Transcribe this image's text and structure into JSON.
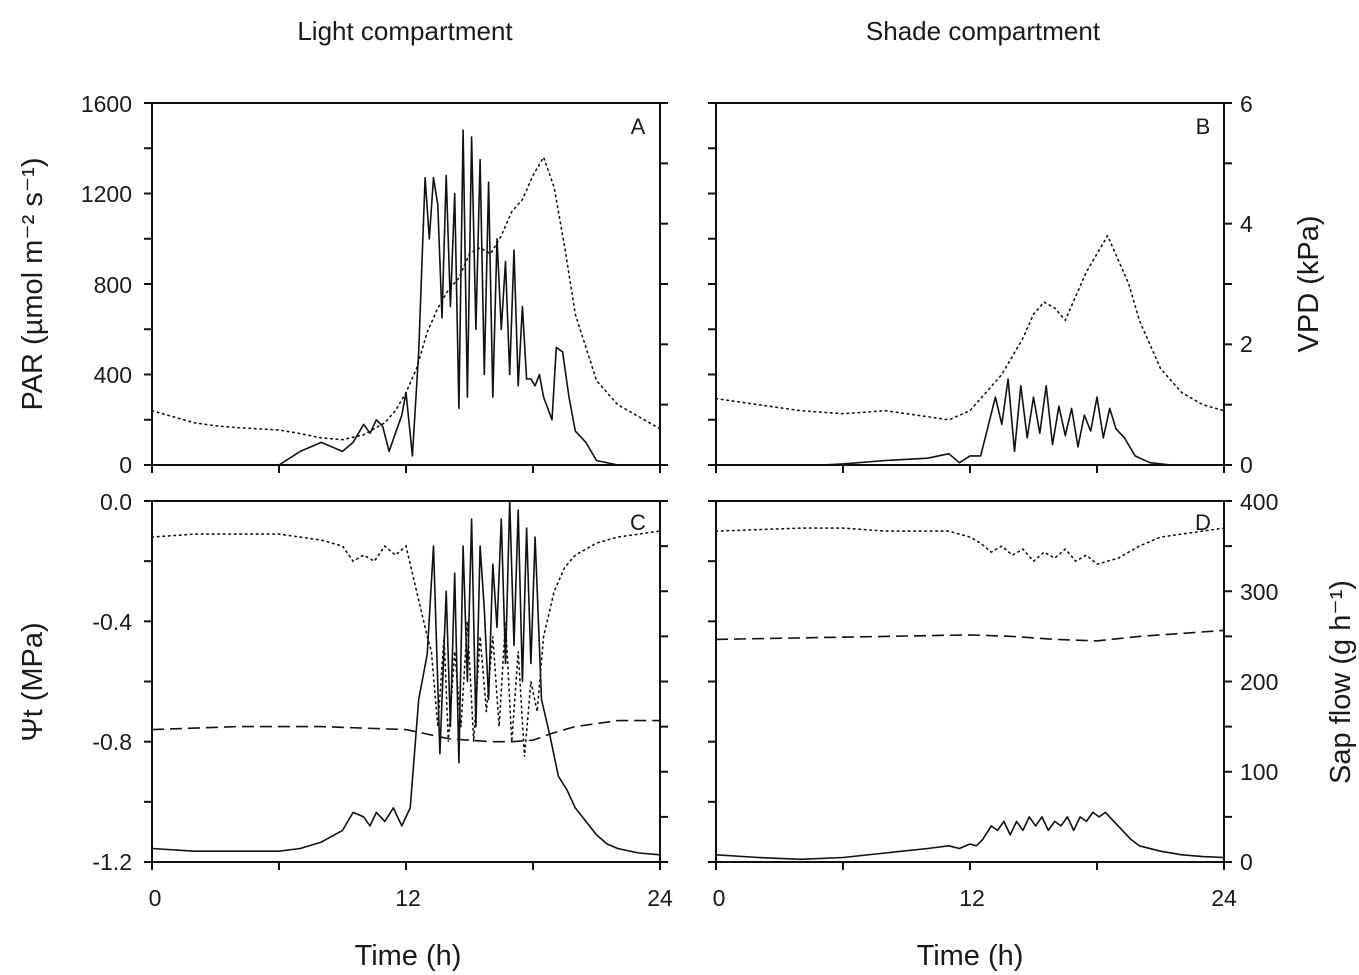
{
  "figure": {
    "col_titles": [
      "Light compartment",
      "Shade compartment"
    ],
    "x_ticks": [
      "0",
      "12",
      "24"
    ],
    "xlabel": "Time (h)"
  },
  "chart_data": [
    {
      "type": "line",
      "panel": "A",
      "column": "Light compartment",
      "xlim": [
        0,
        24
      ],
      "ylabel": "PAR (µmol m⁻² s⁻¹)",
      "ylim": [
        0,
        1600
      ],
      "yticks": [
        "0",
        "400",
        "800",
        "1200",
        "1600"
      ],
      "y2lim": [
        0,
        6
      ],
      "series": [
        {
          "style": "solid",
          "axis": "left",
          "x": [
            0,
            6,
            7,
            8,
            8.5,
            9,
            9.5,
            10,
            10.3,
            10.6,
            10.9,
            11.2,
            11.5,
            11.8,
            12,
            12.3,
            12.6,
            12.9,
            13.1,
            13.3,
            13.5,
            13.7,
            13.9,
            14.1,
            14.3,
            14.5,
            14.7,
            14.9,
            15.1,
            15.3,
            15.5,
            15.7,
            15.9,
            16.1,
            16.3,
            16.5,
            16.7,
            16.9,
            17.1,
            17.3,
            17.5,
            17.7,
            17.9,
            18.1,
            18.3,
            18.5,
            18.7,
            18.9,
            19.1,
            19.4,
            19.7,
            20,
            20.5,
            21,
            22
          ],
          "y": [
            0,
            0,
            60,
            100,
            80,
            60,
            100,
            180,
            140,
            200,
            170,
            60,
            140,
            220,
            320,
            40,
            500,
            1270,
            1000,
            1270,
            1150,
            650,
            1280,
            700,
            1200,
            250,
            1480,
            300,
            1450,
            600,
            1350,
            400,
            1250,
            300,
            1000,
            600,
            900,
            400,
            950,
            350,
            700,
            380,
            380,
            350,
            400,
            300,
            250,
            200,
            520,
            500,
            300,
            150,
            100,
            20,
            0
          ]
        },
        {
          "style": "dotted",
          "axis": "right",
          "x": [
            0,
            1,
            2,
            3,
            4,
            5,
            6,
            7,
            8,
            9,
            10,
            11,
            11.5,
            12,
            12.5,
            13,
            13.5,
            14,
            14.5,
            15,
            15.5,
            16,
            16.5,
            17,
            17.5,
            18,
            18.5,
            19,
            19.5,
            20,
            21,
            22,
            23,
            24
          ],
          "y": [
            0.9,
            0.8,
            0.7,
            0.65,
            0.62,
            0.6,
            0.58,
            0.52,
            0.45,
            0.42,
            0.5,
            0.7,
            0.9,
            1.2,
            1.6,
            2.2,
            2.6,
            2.9,
            3.1,
            3.5,
            3.6,
            3.5,
            3.8,
            4.2,
            4.4,
            4.8,
            5.1,
            4.6,
            3.6,
            2.5,
            1.4,
            1.0,
            0.8,
            0.6
          ]
        }
      ]
    },
    {
      "type": "line",
      "panel": "B",
      "column": "Shade compartment",
      "xlim": [
        0,
        24
      ],
      "ylim": [
        0,
        1600
      ],
      "y2label": "VPD (kPa)",
      "y2lim": [
        0,
        6
      ],
      "y2ticks": [
        "0",
        "2",
        "4",
        "6"
      ],
      "series": [
        {
          "style": "solid",
          "axis": "left",
          "x": [
            0,
            5,
            6,
            8,
            10,
            11,
            11.5,
            12,
            12.5,
            12.8,
            13.2,
            13.5,
            13.8,
            14.1,
            14.4,
            14.7,
            15,
            15.3,
            15.6,
            15.9,
            16.2,
            16.5,
            16.8,
            17.1,
            17.4,
            17.7,
            18,
            18.3,
            18.6,
            18.9,
            19.3,
            19.8,
            20.5,
            21.5,
            24
          ],
          "y": [
            0,
            0,
            5,
            20,
            30,
            50,
            10,
            40,
            40,
            150,
            300,
            180,
            380,
            60,
            350,
            120,
            300,
            140,
            350,
            90,
            260,
            130,
            250,
            80,
            220,
            150,
            300,
            120,
            250,
            160,
            120,
            40,
            10,
            0,
            0
          ]
        },
        {
          "style": "dotted",
          "axis": "right",
          "x": [
            0,
            2,
            4,
            6,
            8,
            10,
            11,
            12,
            12.5,
            13,
            13.5,
            14,
            14.5,
            15,
            15.5,
            16,
            16.5,
            17,
            17.5,
            18,
            18.5,
            19,
            19.5,
            20,
            21,
            22,
            23,
            24
          ],
          "y": [
            1.1,
            1.0,
            0.9,
            0.85,
            0.9,
            0.8,
            0.75,
            0.9,
            1.1,
            1.3,
            1.5,
            1.8,
            2.1,
            2.5,
            2.7,
            2.6,
            2.4,
            2.8,
            3.2,
            3.5,
            3.8,
            3.4,
            3.0,
            2.4,
            1.6,
            1.2,
            1.0,
            0.9
          ]
        }
      ]
    },
    {
      "type": "line",
      "panel": "C",
      "column": "Light compartment",
      "xlim": [
        0,
        24
      ],
      "ylabel": "Ψt (MPa)",
      "ylim": [
        -1.2,
        0
      ],
      "yticks": [
        "-1.2",
        "-0.8",
        "-0.4",
        "0.0"
      ],
      "y2lim": [
        0,
        400
      ],
      "series": [
        {
          "style": "solid",
          "axis": "right",
          "x": [
            0,
            2,
            4,
            6,
            7,
            8,
            9,
            9.5,
            10,
            10.3,
            10.6,
            11,
            11.4,
            11.8,
            12.2,
            12.6,
            13,
            13.3,
            13.6,
            13.9,
            14.1,
            14.3,
            14.5,
            14.7,
            14.9,
            15.1,
            15.3,
            15.5,
            15.7,
            15.9,
            16.1,
            16.3,
            16.5,
            16.7,
            16.9,
            17.1,
            17.3,
            17.5,
            17.7,
            17.9,
            18.1,
            18.4,
            18.8,
            19.2,
            19.6,
            20,
            20.5,
            21,
            21.5,
            22,
            23,
            24
          ],
          "y": [
            15,
            12,
            12,
            12,
            15,
            22,
            35,
            55,
            50,
            40,
            55,
            45,
            60,
            40,
            60,
            180,
            230,
            350,
            120,
            300,
            150,
            320,
            110,
            350,
            200,
            380,
            150,
            350,
            280,
            180,
            330,
            260,
            380,
            220,
            400,
            240,
            390,
            200,
            370,
            220,
            360,
            180,
            140,
            95,
            80,
            60,
            45,
            30,
            20,
            15,
            10,
            8
          ]
        },
        {
          "style": "dotted",
          "axis": "left",
          "x": [
            0,
            2,
            4,
            6,
            7,
            8,
            9,
            9.5,
            10,
            10.5,
            11,
            11.5,
            12,
            12.5,
            13,
            13.2,
            13.5,
            13.8,
            14,
            14.3,
            14.6,
            14.9,
            15.2,
            15.5,
            15.8,
            16.1,
            16.4,
            16.7,
            17,
            17.3,
            17.6,
            17.9,
            18.2,
            18.5,
            19,
            19.5,
            20,
            21,
            22,
            23,
            24
          ],
          "y": [
            -0.12,
            -0.11,
            -0.11,
            -0.11,
            -0.12,
            -0.13,
            -0.15,
            -0.2,
            -0.18,
            -0.2,
            -0.15,
            -0.18,
            -0.15,
            -0.3,
            -0.45,
            -0.5,
            -0.75,
            -0.45,
            -0.8,
            -0.5,
            -0.75,
            -0.4,
            -0.8,
            -0.45,
            -0.7,
            -0.45,
            -0.75,
            -0.4,
            -0.8,
            -0.5,
            -0.85,
            -0.6,
            -0.7,
            -0.45,
            -0.3,
            -0.22,
            -0.18,
            -0.14,
            -0.12,
            -0.11,
            -0.1
          ]
        },
        {
          "style": "dashed",
          "axis": "left",
          "x": [
            0,
            2,
            4,
            6,
            8,
            10,
            12,
            13,
            14,
            15,
            16,
            17,
            18,
            19,
            20,
            21,
            22,
            24
          ],
          "y": [
            -0.76,
            -0.755,
            -0.75,
            -0.75,
            -0.75,
            -0.755,
            -0.76,
            -0.775,
            -0.79,
            -0.795,
            -0.8,
            -0.8,
            -0.795,
            -0.77,
            -0.75,
            -0.74,
            -0.73,
            -0.73
          ]
        }
      ]
    },
    {
      "type": "line",
      "panel": "D",
      "column": "Shade compartment",
      "xlim": [
        0,
        24
      ],
      "ylim": [
        -1.2,
        0
      ],
      "y2label": "Sap flow (g h⁻¹)",
      "y2lim": [
        0,
        400
      ],
      "y2ticks": [
        "0",
        "100",
        "200",
        "300",
        "400"
      ],
      "series": [
        {
          "style": "solid",
          "axis": "right",
          "x": [
            0,
            2,
            4,
            6,
            8,
            10,
            11,
            11.5,
            12,
            12.3,
            12.6,
            13,
            13.3,
            13.6,
            13.9,
            14.2,
            14.5,
            14.8,
            15.1,
            15.4,
            15.7,
            16,
            16.3,
            16.6,
            16.9,
            17.2,
            17.5,
            17.8,
            18.1,
            18.4,
            18.8,
            19.2,
            19.6,
            20,
            21,
            22,
            23,
            24
          ],
          "y": [
            8,
            5,
            3,
            5,
            10,
            15,
            18,
            15,
            20,
            18,
            25,
            40,
            35,
            45,
            30,
            45,
            35,
            50,
            40,
            50,
            35,
            45,
            40,
            50,
            35,
            50,
            45,
            55,
            50,
            55,
            45,
            35,
            25,
            18,
            12,
            8,
            6,
            5
          ]
        },
        {
          "style": "dotted",
          "axis": "left",
          "x": [
            0,
            2,
            4,
            6,
            8,
            10,
            11,
            12,
            12.5,
            13,
            13.5,
            14,
            14.5,
            15,
            15.5,
            16,
            16.5,
            17,
            17.5,
            18,
            18.5,
            19,
            19.5,
            20,
            21,
            22,
            23,
            24
          ],
          "y": [
            -0.1,
            -0.095,
            -0.09,
            -0.09,
            -0.1,
            -0.1,
            -0.1,
            -0.12,
            -0.14,
            -0.17,
            -0.15,
            -0.18,
            -0.16,
            -0.2,
            -0.17,
            -0.19,
            -0.16,
            -0.2,
            -0.18,
            -0.21,
            -0.2,
            -0.19,
            -0.17,
            -0.15,
            -0.12,
            -0.11,
            -0.1,
            -0.09
          ]
        },
        {
          "style": "dashed",
          "axis": "left",
          "x": [
            0,
            4,
            8,
            12,
            14,
            16,
            18,
            20,
            22,
            24
          ],
          "y": [
            -0.46,
            -0.455,
            -0.45,
            -0.445,
            -0.45,
            -0.46,
            -0.465,
            -0.45,
            -0.44,
            -0.43
          ]
        }
      ]
    }
  ]
}
